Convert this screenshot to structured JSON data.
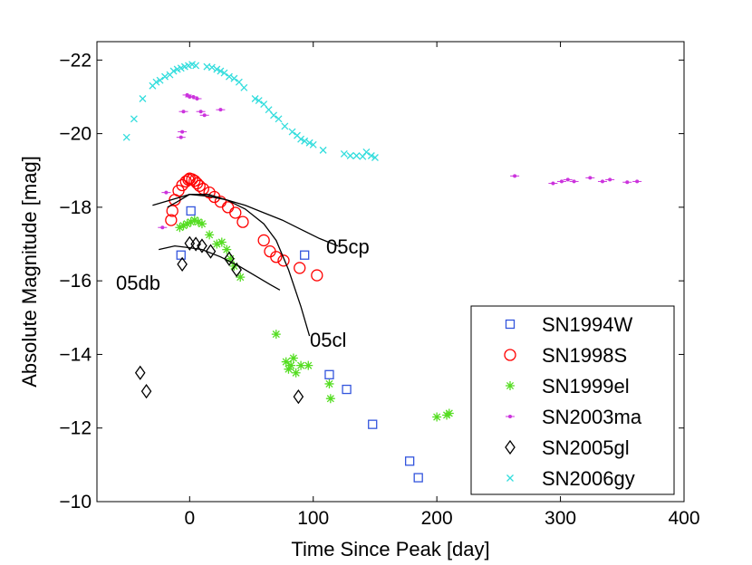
{
  "chart_data": {
    "type": "scatter",
    "title": "",
    "xlabel": "Time Since Peak [day]",
    "ylabel": "Absolute Magnitude [mag]",
    "xlim": [
      -75,
      400
    ],
    "ylim": [
      -10,
      -22.5
    ],
    "y_inverted": true,
    "grid": false,
    "legend_position": "bottom-right",
    "x_ticks": [
      {
        "value": 0,
        "label": "0"
      },
      {
        "value": 100,
        "label": "100"
      },
      {
        "value": 200,
        "label": "200"
      },
      {
        "value": 300,
        "label": "300"
      },
      {
        "value": 400,
        "label": "400"
      }
    ],
    "y_ticks": [
      {
        "value": -22,
        "label": "−22"
      },
      {
        "value": -20,
        "label": "−20"
      },
      {
        "value": -18,
        "label": "−18"
      },
      {
        "value": -16,
        "label": "−16"
      },
      {
        "value": -14,
        "label": "−14"
      },
      {
        "value": -12,
        "label": "−12"
      },
      {
        "value": -10,
        "label": "−10"
      }
    ],
    "series": [
      {
        "name": "SN1994W",
        "marker": "square",
        "color": "#3355dd",
        "points": [
          [
            -7,
            -16.7
          ],
          [
            1,
            -17.9
          ],
          [
            93,
            -16.7
          ],
          [
            113,
            -13.45
          ],
          [
            127,
            -13.05
          ],
          [
            148,
            -12.1
          ],
          [
            178,
            -11.1
          ],
          [
            185,
            -10.65
          ]
        ]
      },
      {
        "name": "SN1998S",
        "marker": "circle",
        "color": "#ff0000",
        "points": [
          [
            -15,
            -17.65
          ],
          [
            -14,
            -17.9
          ],
          [
            -12,
            -18.2
          ],
          [
            -9,
            -18.45
          ],
          [
            -6,
            -18.6
          ],
          [
            -3,
            -18.7
          ],
          [
            -1,
            -18.75
          ],
          [
            0,
            -18.78
          ],
          [
            2,
            -18.76
          ],
          [
            4,
            -18.72
          ],
          [
            6,
            -18.65
          ],
          [
            8,
            -18.58
          ],
          [
            11,
            -18.5
          ],
          [
            16,
            -18.4
          ],
          [
            20,
            -18.28
          ],
          [
            25,
            -18.15
          ],
          [
            31,
            -18.0
          ],
          [
            37,
            -17.85
          ],
          [
            43,
            -17.6
          ],
          [
            60,
            -17.1
          ],
          [
            65,
            -16.8
          ],
          [
            70,
            -16.65
          ],
          [
            76,
            -16.55
          ],
          [
            89,
            -16.35
          ],
          [
            103,
            -16.15
          ]
        ]
      },
      {
        "name": "SN1999el",
        "marker": "star",
        "color": "#55dd22",
        "points": [
          [
            -8,
            -17.45
          ],
          [
            -5,
            -17.5
          ],
          [
            -2,
            -17.55
          ],
          [
            1,
            -17.6
          ],
          [
            4,
            -17.65
          ],
          [
            7,
            -17.6
          ],
          [
            10,
            -17.55
          ],
          [
            16,
            -17.25
          ],
          [
            22,
            -17.0
          ],
          [
            26,
            -17.05
          ],
          [
            30,
            -16.85
          ],
          [
            33,
            -16.6
          ],
          [
            36,
            -16.4
          ],
          [
            41,
            -16.1
          ],
          [
            70,
            -14.55
          ],
          [
            78,
            -13.8
          ],
          [
            80,
            -13.6
          ],
          [
            82,
            -13.7
          ],
          [
            84,
            -13.9
          ],
          [
            86,
            -13.5
          ],
          [
            90,
            -13.7
          ],
          [
            96,
            -13.7
          ],
          [
            113,
            -13.2
          ],
          [
            114,
            -12.8
          ],
          [
            200,
            -12.3
          ],
          [
            208,
            -12.35
          ],
          [
            210,
            -12.4
          ]
        ]
      },
      {
        "name": "SN2003ma",
        "marker": "dot",
        "color": "#cc33dd",
        "points": [
          [
            -19,
            -18.4
          ],
          [
            -22,
            -17.45
          ],
          [
            -5,
            -20.6
          ],
          [
            -2,
            -21.05
          ],
          [
            0,
            -21.0
          ],
          [
            3,
            -21.0
          ],
          [
            6,
            -20.95
          ],
          [
            9,
            -20.6
          ],
          [
            12,
            -20.5
          ],
          [
            25,
            -20.65
          ],
          [
            -6,
            -20.05
          ],
          [
            -7,
            -19.9
          ],
          [
            263,
            -18.85
          ],
          [
            294,
            -18.65
          ],
          [
            301,
            -18.7
          ],
          [
            306,
            -18.75
          ],
          [
            311,
            -18.7
          ],
          [
            324,
            -18.8
          ],
          [
            334,
            -18.7
          ],
          [
            340,
            -18.75
          ],
          [
            354,
            -18.68
          ],
          [
            362,
            -18.7
          ]
        ]
      },
      {
        "name": "SN2005gl",
        "marker": "diamond",
        "color": "#000000",
        "points": [
          [
            -40,
            -13.5
          ],
          [
            -35,
            -13.0
          ],
          [
            -6,
            -16.45
          ],
          [
            0,
            -17.02
          ],
          [
            5,
            -17.0
          ],
          [
            10,
            -16.95
          ],
          [
            17,
            -16.8
          ],
          [
            32,
            -16.6
          ],
          [
            38,
            -16.3
          ],
          [
            88,
            -12.85
          ]
        ]
      },
      {
        "name": "SN2006gy",
        "marker": "x",
        "color": "#33dddd",
        "points": [
          [
            -51,
            -19.9
          ],
          [
            -45,
            -20.4
          ],
          [
            -38,
            -20.95
          ],
          [
            -30,
            -21.3
          ],
          [
            -27,
            -21.4
          ],
          [
            -24,
            -21.45
          ],
          [
            -20,
            -21.55
          ],
          [
            -16,
            -21.6
          ],
          [
            -13,
            -21.7
          ],
          [
            -10,
            -21.75
          ],
          [
            -7,
            -21.78
          ],
          [
            -4,
            -21.82
          ],
          [
            -1,
            -21.85
          ],
          [
            2,
            -21.88
          ],
          [
            5,
            -21.85
          ],
          [
            14,
            -21.82
          ],
          [
            18,
            -21.8
          ],
          [
            22,
            -21.75
          ],
          [
            25,
            -21.7
          ],
          [
            28,
            -21.65
          ],
          [
            32,
            -21.55
          ],
          [
            36,
            -21.5
          ],
          [
            40,
            -21.4
          ],
          [
            44,
            -21.25
          ],
          [
            53,
            -20.95
          ],
          [
            56,
            -20.9
          ],
          [
            60,
            -20.8
          ],
          [
            64,
            -20.65
          ],
          [
            68,
            -20.5
          ],
          [
            72,
            -20.4
          ],
          [
            77,
            -20.2
          ],
          [
            83,
            -20.05
          ],
          [
            87,
            -19.95
          ],
          [
            90,
            -19.85
          ],
          [
            93,
            -19.8
          ],
          [
            97,
            -19.75
          ],
          [
            100,
            -19.7
          ],
          [
            108,
            -19.55
          ],
          [
            125,
            -19.45
          ],
          [
            130,
            -19.4
          ],
          [
            135,
            -19.4
          ],
          [
            140,
            -19.38
          ],
          [
            143,
            -19.5
          ],
          [
            147,
            -19.4
          ],
          [
            150,
            -19.35
          ]
        ]
      }
    ],
    "model_curves": [
      {
        "name": "05cp",
        "label": "05cp",
        "points": [
          [
            -30,
            -18.05
          ],
          [
            -15,
            -18.2
          ],
          [
            0,
            -18.35
          ],
          [
            15,
            -18.3
          ],
          [
            30,
            -18.2
          ],
          [
            45,
            -18.05
          ],
          [
            60,
            -17.85
          ],
          [
            75,
            -17.65
          ],
          [
            90,
            -17.4
          ],
          [
            105,
            -17.15
          ],
          [
            120,
            -16.95
          ]
        ]
      },
      {
        "name": "05cl",
        "label": "05cl",
        "points": [
          [
            -18,
            -18.0
          ],
          [
            -10,
            -18.15
          ],
          [
            0,
            -18.35
          ],
          [
            15,
            -18.35
          ],
          [
            30,
            -18.2
          ],
          [
            45,
            -17.95
          ],
          [
            60,
            -17.55
          ],
          [
            70,
            -17.1
          ],
          [
            80,
            -16.3
          ],
          [
            90,
            -15.3
          ],
          [
            97,
            -14.5
          ]
        ]
      },
      {
        "name": "05db",
        "label": "05db",
        "points": [
          [
            -25,
            -16.85
          ],
          [
            -12,
            -16.95
          ],
          [
            0,
            -16.9
          ],
          [
            10,
            -16.85
          ],
          [
            25,
            -16.65
          ],
          [
            40,
            -16.4
          ],
          [
            55,
            -16.1
          ],
          [
            65,
            -15.9
          ],
          [
            73,
            -15.75
          ]
        ]
      }
    ]
  }
}
